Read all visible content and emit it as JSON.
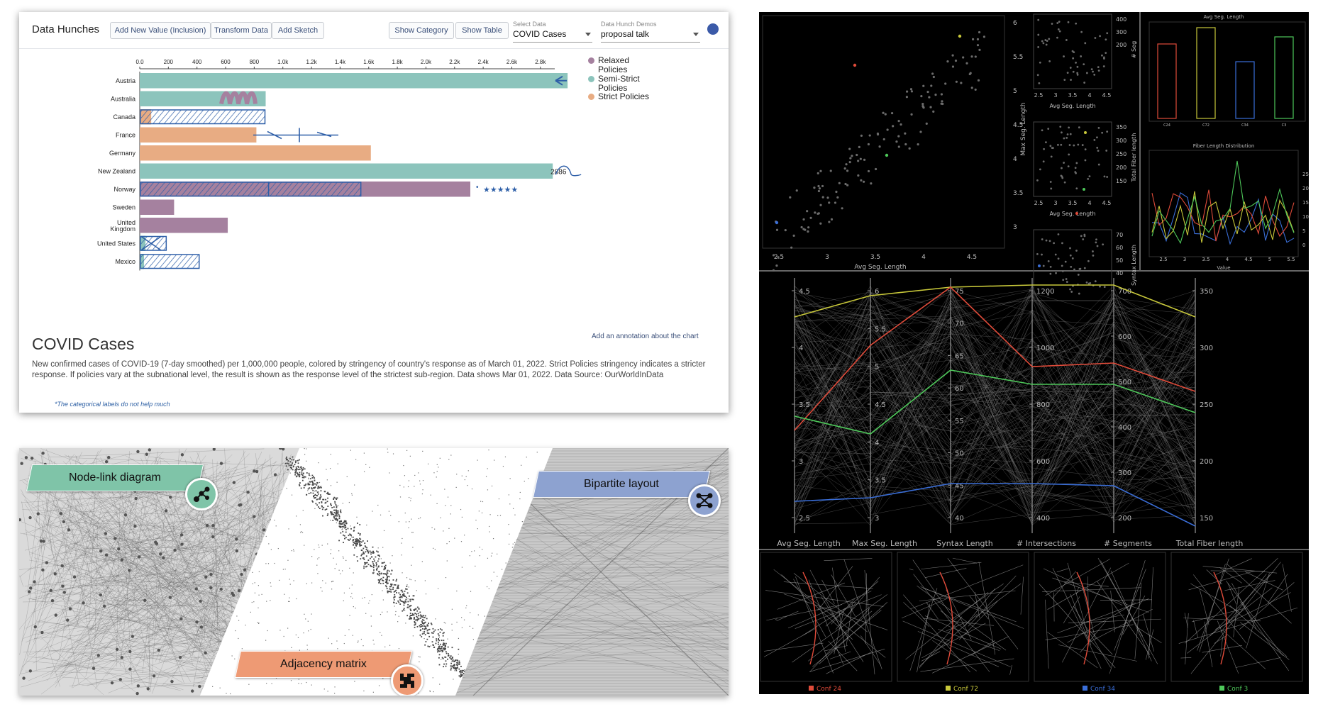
{
  "toolbar": {
    "title": "Data Hunches",
    "buttons": [
      "Add New Value (Inclusion)",
      "Transform Data",
      "Add Sketch",
      "Show Category",
      "Show Table"
    ],
    "select_data_label": "Select Data",
    "select_data_value": "COVID Cases",
    "demos_label": "Data Hunch Demos",
    "demos_value": "proposal talk"
  },
  "chart_data": {
    "type": "bar",
    "title": "COVID Cases",
    "description": "New confirmed cases of COVID-19 (7-day smoothed) per 1,000,000 people, colored by stringency of country's response as of March 01, 2022. Strict Policies stringency indicates a stricter response. If policies vary at the subnational level, the result is shown as the response level of the strictest sub-region. Data shows Mar 01, 2022. Data Source: OurWorldInData",
    "xlim": [
      0,
      2900
    ],
    "ticks": [
      "0.0",
      "200",
      "400",
      "600",
      "800",
      "1.0k",
      "1.2k",
      "1.4k",
      "1.6k",
      "1.8k",
      "2.0k",
      "2.2k",
      "2.4k",
      "2.6k",
      "2.8k"
    ],
    "categories": [
      "Austria",
      "Australia",
      "Canada",
      "France",
      "Germany",
      "New Zealand",
      "Norway",
      "Sweden",
      "United Kingdom",
      "United States",
      "Mexico"
    ],
    "values": [
      2990,
      880,
      80,
      815,
      1615,
      2886,
      2310,
      240,
      615,
      40,
      30
    ],
    "policy": [
      "Semi-Strict Policies",
      "Semi-Strict Policies",
      "Strict Policies",
      "Strict Policies",
      "Strict Policies",
      "Semi-Strict Policies",
      "Relaxed Policies",
      "Relaxed Policies",
      "Relaxed Policies",
      "Semi-Strict Policies",
      "Semi-Strict Policies"
    ],
    "legend": [
      {
        "name": "Relaxed Policies",
        "color": "#a5819f"
      },
      {
        "name": "Semi-Strict Policies",
        "color": "#8cc4bc"
      },
      {
        "name": "Strict Policies",
        "color": "#e8ac83"
      }
    ],
    "data_labels": {
      "New Zealand": "2886",
      "Norway_rating": "★★★★★"
    }
  },
  "annotation_link": "Add an annotation about the chart",
  "handwritten_note": "*The categorical labels do not help much",
  "network": {
    "labels": [
      "Node-link diagram",
      "Adjacency matrix",
      "Bipartite layout"
    ],
    "colors": {
      "node_link": "#7fc4a8",
      "matrix": "#ee9a74",
      "bipartite": "#8da2d0"
    }
  },
  "dark": {
    "scatter_x_label": "Avg Seg. Length",
    "scatter_y_label": "Max Seg. Length",
    "scatter_x_ticks": [
      "2.5",
      "3",
      "3.5",
      "4",
      "4.5"
    ],
    "scatter_y_ticks": [
      "3",
      "3.5",
      "4",
      "4.5",
      "5",
      "5.5",
      "6"
    ],
    "small_x_label": "Avg Seg. Length",
    "small_x_ticks": [
      "2.5",
      "3",
      "3.5",
      "4",
      "4.5"
    ],
    "small_y_labels": [
      "# Seg",
      "Total Fiber length",
      "Syntax Length"
    ],
    "small_y_ticks": [
      [
        "400",
        "300",
        "200"
      ],
      [
        "350",
        "300",
        "250",
        "200",
        "150"
      ],
      [
        "70",
        "60",
        "50",
        "40"
      ]
    ],
    "bar_title": "Avg Seg. Length",
    "bar_categories": [
      "C24",
      "C72",
      "C34",
      "C3"
    ],
    "line_title": "Fiber Length Distribution",
    "line_x_label": "Value",
    "line_x_ticks": [
      "2.5",
      "3",
      "3.5",
      "4",
      "4.5",
      "5",
      "5.5"
    ],
    "line_y_ticks": [
      "25",
      "20",
      "15",
      "10",
      "5",
      "0"
    ],
    "pc_axes": [
      "Avg Seg. Length",
      "Max Seg. Length",
      "Syntax Length",
      "# Intersections",
      "# Segments",
      "Total Fiber length"
    ],
    "pc_ticks": [
      [
        "4.5",
        "4",
        "3.5",
        "3",
        "2.5"
      ],
      [
        "6",
        "5.5",
        "5",
        "4.5",
        "4",
        "3.5",
        "3"
      ],
      [
        "75",
        "70",
        "65",
        "60",
        "55",
        "50",
        "45",
        "40"
      ],
      [
        "1200",
        "1000",
        "800",
        "600",
        "400"
      ],
      [
        "700",
        "600",
        "500",
        "400",
        "300",
        "200"
      ],
      [
        "350",
        "300",
        "250",
        "200",
        "150"
      ]
    ],
    "configs": [
      "Conf 24",
      "Conf 72",
      "Conf 34",
      "Conf 3"
    ],
    "config_colors": [
      "#e04b3a",
      "#c8c83a",
      "#3a6ed8",
      "#4ec85a"
    ]
  }
}
